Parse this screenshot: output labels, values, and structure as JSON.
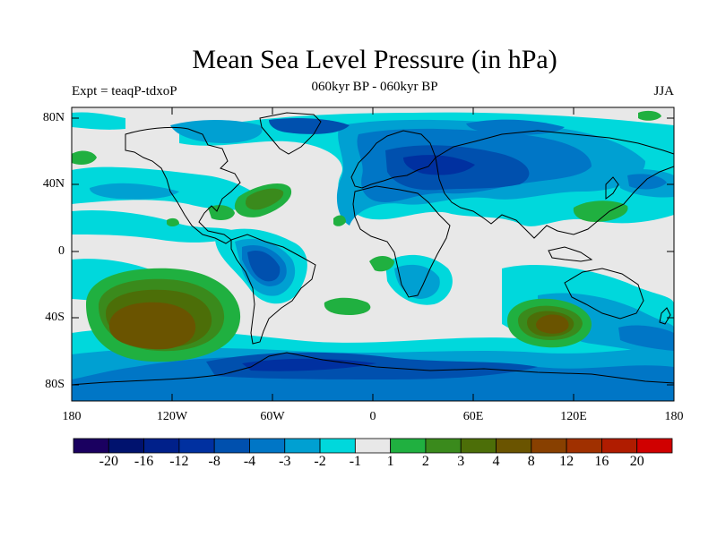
{
  "title": "Mean Sea Level Pressure (in hPa)",
  "subtitle": "060kyr BP - 060kyr BP",
  "expt": "Expt = teaqP-tdxoP",
  "season": "JJA",
  "colors": {
    "ocean_gray": "#e8e8e8",
    "neg": [
      "#1a0060",
      "#00126e",
      "#00208a",
      "#0030a0",
      "#0050ae",
      "#0076c6",
      "#00a0d2",
      "#00d8dc"
    ],
    "pos": [
      "#20b040",
      "#3a8a1c",
      "#4c6e08",
      "#6a5400",
      "#884000",
      "#a03000",
      "#b01c00",
      "#d00000"
    ]
  },
  "y_ticks": [
    "80N",
    "40N",
    "0",
    "40S",
    "80S"
  ],
  "x_ticks": [
    "180",
    "120W",
    "60W",
    "0",
    "60E",
    "120E",
    "180"
  ],
  "colorbar_labels": [
    "-20",
    "-16",
    "-12",
    "-8",
    "-4",
    "-3",
    "-2",
    "-1",
    "1",
    "2",
    "3",
    "4",
    "8",
    "12",
    "16",
    "20"
  ]
}
